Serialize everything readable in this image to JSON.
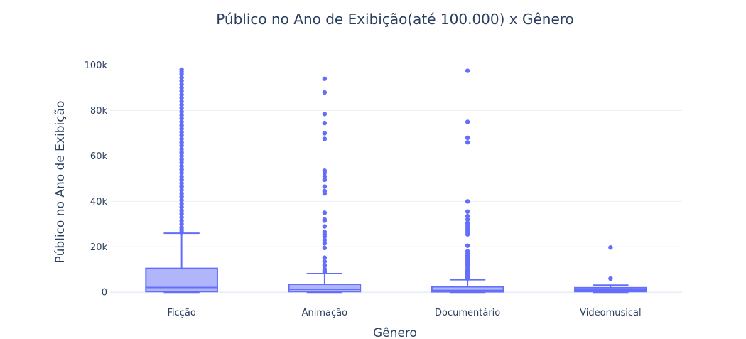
{
  "chart_data": {
    "type": "box",
    "title": "Público no Ano de Exibição(até 100.000) x Gênero",
    "xlabel": "Gênero",
    "ylabel": "Público no Ano de Exibição",
    "ylim": [
      -1500,
      100500
    ],
    "yticks": [
      0,
      20000,
      40000,
      60000,
      80000,
      100000
    ],
    "ytick_labels": [
      "0",
      "20k",
      "40k",
      "60k",
      "80k",
      "100k"
    ],
    "grid": true,
    "colors": {
      "line": "#636efa",
      "fill": "#636efa",
      "fill_opacity": 0.5
    },
    "categories": [
      "Ficção",
      "Animação",
      "Documentário",
      "Videomusical"
    ],
    "boxes": [
      {
        "category": "Ficção",
        "min": 0,
        "q1": 300,
        "median": 2100,
        "q3": 10500,
        "upper_fence": 26000,
        "outliers": [
          26500,
          27500,
          28500,
          30000,
          31500,
          33000,
          34500,
          36000,
          37500,
          39000,
          40500,
          42000,
          43500,
          45000,
          46500,
          48000,
          49500,
          51000,
          52500,
          54000,
          55500,
          57000,
          58500,
          60000,
          61500,
          63000,
          64500,
          66000,
          67500,
          69000,
          70500,
          72000,
          73500,
          75000,
          76500,
          78000,
          79500,
          81000,
          82500,
          84000,
          85500,
          87000,
          88500,
          90000,
          91500,
          93000,
          94500,
          96000,
          97000,
          98000
        ]
      },
      {
        "category": "Animação",
        "min": 0,
        "q1": 300,
        "median": 1300,
        "q3": 3500,
        "upper_fence": 8200,
        "outliers": [
          8800,
          9500,
          10200,
          11800,
          13500,
          15200,
          19500,
          21500,
          23000,
          24500,
          25500,
          26500,
          29000,
          31500,
          32000,
          35000,
          43500,
          44500,
          46500,
          49500,
          51000,
          52500,
          53500,
          67500,
          70000,
          74500,
          78500,
          88000,
          94000
        ]
      },
      {
        "category": "Documentário",
        "min": 0,
        "q1": 200,
        "median": 800,
        "q3": 2400,
        "upper_fence": 5500,
        "outliers": [
          6000,
          6500,
          7000,
          7500,
          8000,
          8500,
          9000,
          9500,
          10000,
          11000,
          12000,
          13000,
          14000,
          15000,
          16000,
          17000,
          18000,
          20500,
          25500,
          26500,
          27500,
          28500,
          29500,
          30500,
          32000,
          33500,
          35500,
          40000,
          66000,
          68000,
          75000,
          97500
        ]
      },
      {
        "category": "Videomusical",
        "min": 0,
        "q1": 300,
        "median": 1000,
        "q3": 2000,
        "upper_fence": 3100,
        "outliers": [
          6000,
          19700
        ]
      }
    ]
  }
}
